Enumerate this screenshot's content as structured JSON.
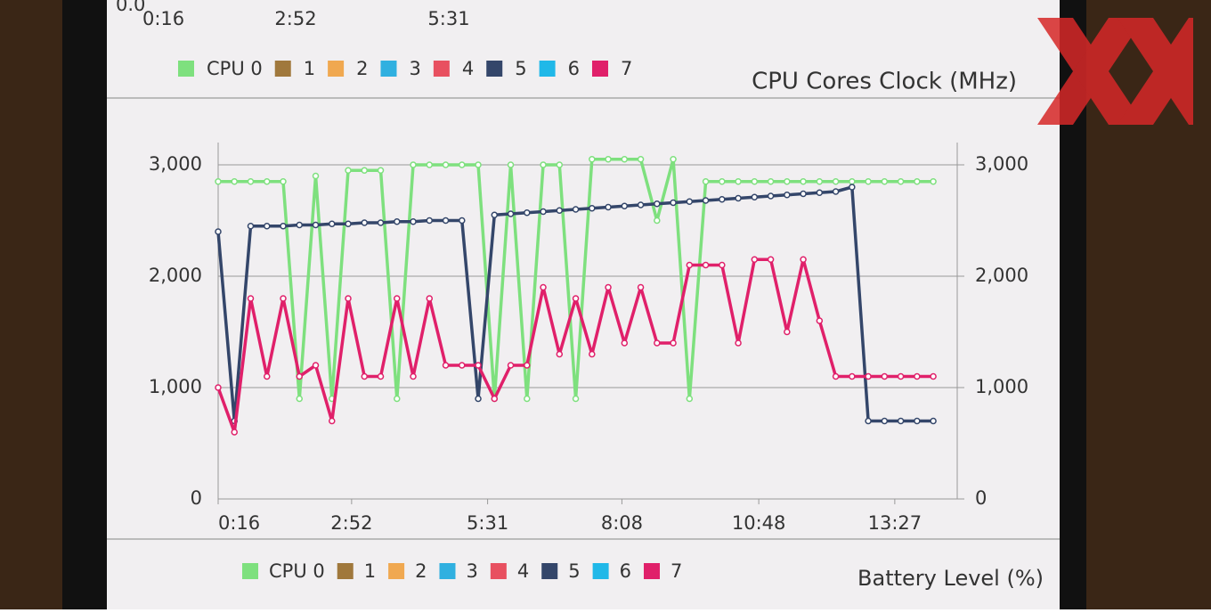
{
  "chart_data": {
    "type": "line",
    "title": "CPU Cores Clock (MHz)",
    "x": [
      16,
      35,
      54,
      73,
      92,
      111,
      130,
      149,
      168,
      187,
      206,
      225,
      244,
      263,
      282,
      301,
      320,
      339,
      358,
      377,
      396,
      415,
      434,
      453,
      472,
      491,
      510,
      529,
      548,
      567,
      586,
      605,
      624,
      643,
      662,
      681,
      700,
      719,
      738,
      757,
      776,
      795,
      814,
      833,
      852
    ],
    "xlim": [
      16,
      880
    ],
    "xticks": [
      {
        "value": 16,
        "label": "0:16"
      },
      {
        "value": 172,
        "label": "2:52"
      },
      {
        "value": 331,
        "label": "5:31"
      },
      {
        "value": 488,
        "label": "8:08"
      },
      {
        "value": 648,
        "label": "10:48"
      },
      {
        "value": 807,
        "label": "13:27"
      }
    ],
    "ylim": [
      0,
      3200
    ],
    "yticks": [
      0,
      {
        "value": 1000,
        "label": "1,000"
      },
      {
        "value": 2000,
        "label": "2,000"
      },
      {
        "value": 3000,
        "label": "3,000"
      }
    ],
    "y2lim": [
      0,
      3200
    ],
    "y2ticks": [
      0,
      {
        "value": 1000,
        "label": "1,000"
      },
      {
        "value": 2000,
        "label": "2,000"
      },
      {
        "value": 3000,
        "label": "3,000"
      }
    ],
    "grid": true,
    "legend": "bottom",
    "series": [
      {
        "name": "CPU 0",
        "color": "#7ee07e",
        "values": [
          2850,
          2850,
          2850,
          2850,
          2850,
          900,
          2900,
          900,
          2950,
          2950,
          2950,
          900,
          3000,
          3000,
          3000,
          3000,
          3000,
          900,
          3000,
          900,
          3000,
          3000,
          900,
          3050,
          3050,
          3050,
          3050,
          2500,
          3050,
          900,
          2850,
          2850,
          2850,
          2850,
          2850,
          2850,
          2850,
          2850,
          2850,
          2850,
          2850,
          2850,
          2850,
          2850,
          2850
        ]
      },
      {
        "name": "1",
        "color": "#a0783c",
        "values": [
          null,
          null,
          null,
          null,
          null,
          null,
          null,
          null,
          null,
          null,
          null,
          null,
          null,
          null,
          null,
          null,
          null,
          null,
          null,
          null,
          null,
          null,
          null,
          null,
          null,
          null,
          null,
          null,
          null,
          null,
          null,
          null,
          null,
          null,
          null,
          null,
          null,
          null,
          null,
          null,
          null,
          null,
          null,
          null,
          null
        ]
      },
      {
        "name": "2",
        "color": "#f0a850",
        "values": [
          null,
          null,
          null,
          null,
          null,
          null,
          null,
          null,
          null,
          null,
          null,
          null,
          null,
          null,
          null,
          null,
          null,
          null,
          null,
          null,
          null,
          null,
          null,
          null,
          null,
          null,
          null,
          null,
          null,
          null,
          null,
          null,
          null,
          null,
          null,
          null,
          null,
          null,
          null,
          null,
          null,
          null,
          null,
          null,
          null
        ]
      },
      {
        "name": "3",
        "color": "#30b0e0",
        "values": [
          null,
          null,
          null,
          null,
          null,
          null,
          null,
          null,
          null,
          null,
          null,
          null,
          null,
          null,
          null,
          null,
          null,
          null,
          null,
          null,
          null,
          null,
          null,
          null,
          null,
          null,
          null,
          null,
          null,
          null,
          null,
          null,
          null,
          null,
          null,
          null,
          null,
          null,
          null,
          null,
          null,
          null,
          null,
          null,
          null
        ]
      },
      {
        "name": "4",
        "color": "#e85060",
        "values": [
          null,
          null,
          null,
          null,
          null,
          null,
          null,
          null,
          null,
          null,
          null,
          null,
          null,
          null,
          null,
          null,
          null,
          null,
          null,
          null,
          null,
          null,
          null,
          null,
          null,
          null,
          null,
          null,
          null,
          null,
          null,
          null,
          null,
          null,
          null,
          null,
          null,
          null,
          null,
          null,
          null,
          null,
          null,
          null,
          null
        ]
      },
      {
        "name": "5",
        "color": "#34466a",
        "values": [
          2400,
          700,
          2450,
          2450,
          2450,
          2460,
          2460,
          2470,
          2470,
          2480,
          2480,
          2490,
          2490,
          2500,
          2500,
          2500,
          900,
          2550,
          2560,
          2570,
          2580,
          2590,
          2600,
          2610,
          2620,
          2630,
          2640,
          2650,
          2660,
          2670,
          2680,
          2690,
          2700,
          2710,
          2720,
          2730,
          2740,
          2750,
          2760,
          2800,
          700,
          700,
          700,
          700,
          700
        ]
      },
      {
        "name": "6",
        "color": "#20b8e8",
        "values": [
          null,
          null,
          null,
          null,
          null,
          null,
          null,
          null,
          null,
          null,
          null,
          null,
          null,
          null,
          null,
          null,
          null,
          null,
          null,
          null,
          null,
          null,
          null,
          null,
          null,
          null,
          null,
          null,
          null,
          null,
          null,
          null,
          null,
          null,
          null,
          null,
          null,
          null,
          null,
          null,
          null,
          null,
          null,
          null,
          null
        ]
      },
      {
        "name": "7",
        "color": "#e0206a",
        "values": [
          1000,
          600,
          1800,
          1100,
          1800,
          1100,
          1200,
          700,
          1800,
          1100,
          1100,
          1800,
          1100,
          1800,
          1200,
          1200,
          1200,
          900,
          1200,
          1200,
          1900,
          1300,
          1800,
          1300,
          1900,
          1400,
          1900,
          1400,
          1400,
          2100,
          2100,
          2100,
          1400,
          2150,
          2150,
          1500,
          2150,
          1600,
          1100,
          1100,
          1100,
          1100,
          1100,
          1100,
          1100
        ]
      }
    ]
  },
  "top_panel": {
    "ytick": "0.0",
    "xticks": [
      "0:16",
      "2:52",
      "5:31"
    ],
    "legend": [
      "CPU 0",
      "1",
      "2",
      "3",
      "4",
      "5",
      "6",
      "7"
    ]
  },
  "next_panel": {
    "title": "Battery Level (%)"
  }
}
